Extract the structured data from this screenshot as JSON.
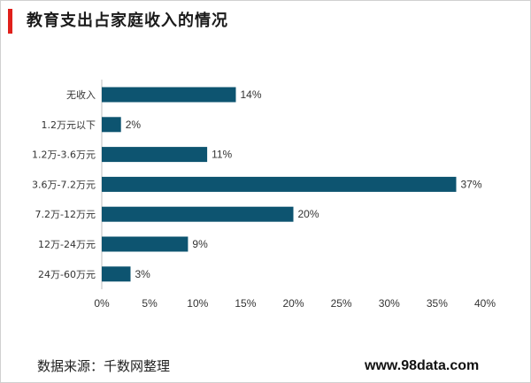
{
  "title": "教育支出占家庭收入的情况",
  "footer": {
    "source": "数据来源：千数网整理",
    "website": "www.98data.com"
  },
  "colors": {
    "bar": "#0d5470",
    "accent": "#e0201b",
    "axis": "#bfbfbf"
  },
  "chart_data": {
    "type": "bar",
    "orientation": "horizontal",
    "categories": [
      "无收入",
      "1.2万元以下",
      "1.2万-3.6万元",
      "3.6万-7.2万元",
      "7.2万-12万元",
      "12万-24万元",
      "24万-60万元"
    ],
    "values": [
      14,
      2,
      11,
      37,
      20,
      9,
      3
    ],
    "data_labels": [
      "14%",
      "2%",
      "11%",
      "37%",
      "20%",
      "9%",
      "3%"
    ],
    "xlim": [
      0,
      40
    ],
    "xticks": [
      0,
      5,
      10,
      15,
      20,
      25,
      30,
      35,
      40
    ],
    "xtick_labels": [
      "0%",
      "5%",
      "10%",
      "15%",
      "20%",
      "25%",
      "30%",
      "35%",
      "40%"
    ],
    "grid": false,
    "legend": "none"
  }
}
